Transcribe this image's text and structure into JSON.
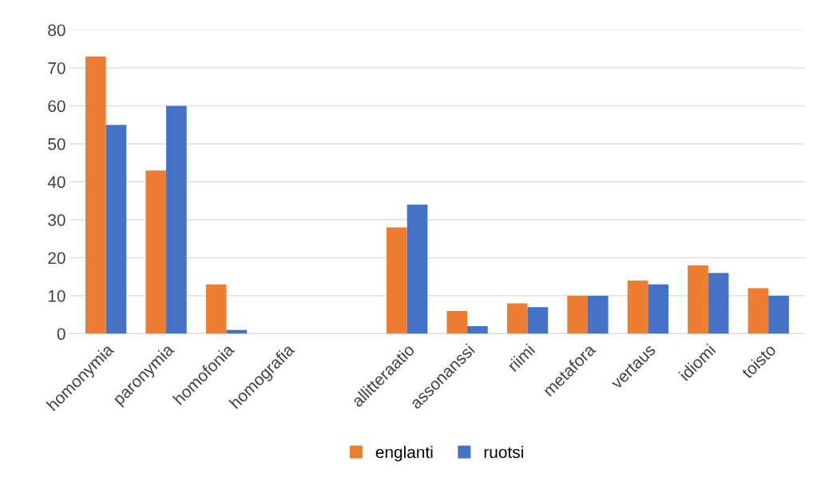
{
  "chart_data": {
    "type": "bar",
    "categories": [
      "homonymia",
      "paronymia",
      "homofonia",
      "homografia",
      null,
      "allitteraatio",
      "assonanssi",
      "riimi",
      "metafora",
      "vertaus",
      "idiomi",
      "toisto"
    ],
    "series": [
      {
        "name": "englanti",
        "color": "#ed7d31",
        "values": [
          73,
          43,
          13,
          0,
          null,
          28,
          6,
          8,
          10,
          14,
          18,
          12
        ]
      },
      {
        "name": "ruotsi",
        "color": "#4472c4",
        "values": [
          55,
          60,
          1,
          0,
          null,
          34,
          2,
          7,
          10,
          13,
          16,
          10
        ]
      }
    ],
    "ylim": [
      0,
      80
    ],
    "yticks": [
      0,
      10,
      20,
      30,
      40,
      50,
      60,
      70,
      80
    ],
    "grid": "y",
    "legend": "bottom"
  }
}
